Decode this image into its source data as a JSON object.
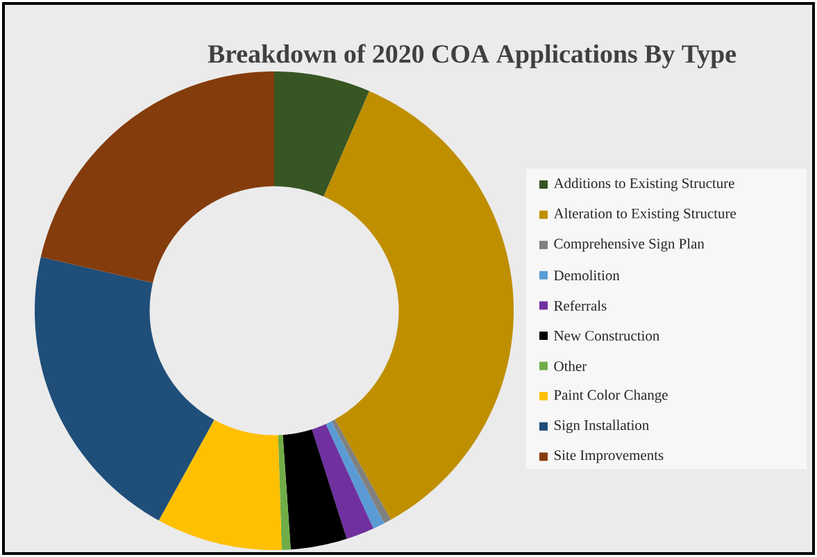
{
  "chart_data": {
    "type": "donut",
    "title": "Breakdown of 2020 COA Applications By Type",
    "categories": [
      "Additions to Existing Structure",
      "Alteration to Existing Structure",
      "Comprehensive Sign Plan",
      "Demolition",
      "Referrals",
      "New Construction",
      "Other",
      "Paint Color Change",
      "Sign Installation",
      "Site Improvements"
    ],
    "values": [
      6.5,
      35.4,
      0.5,
      0.8,
      1.9,
      3.8,
      0.6,
      8.5,
      20.6,
      21.4
    ],
    "colors": [
      "#375623",
      "#bf8f00",
      "#808080",
      "#5b9bd5",
      "#7030a0",
      "#000000",
      "#70ad47",
      "#ffc000",
      "#1f4e79",
      "#843c0c"
    ],
    "legend": "right"
  }
}
